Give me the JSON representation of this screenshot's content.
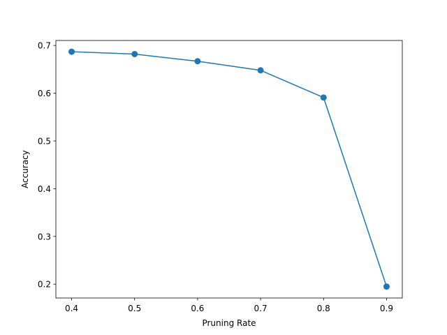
{
  "chart_data": {
    "type": "line",
    "x_label": "Pruning Rate",
    "y_label": "Accuracy",
    "x": [
      0.4,
      0.5,
      0.6,
      0.7,
      0.8,
      0.9
    ],
    "series": [
      {
        "color": "#1f77b4",
        "values": [
          0.687,
          0.682,
          0.667,
          0.648,
          0.591,
          0.195
        ]
      }
    ],
    "xlim": [
      0.375,
      0.925
    ],
    "xticks": [
      0.4,
      0.5,
      0.6,
      0.7,
      0.8,
      0.9
    ],
    "ylim": [
      0.171,
      0.7105
    ],
    "yticks": [
      0.2,
      0.3,
      0.4,
      0.5,
      0.6,
      0.7
    ],
    "grid": false,
    "markers": true
  }
}
